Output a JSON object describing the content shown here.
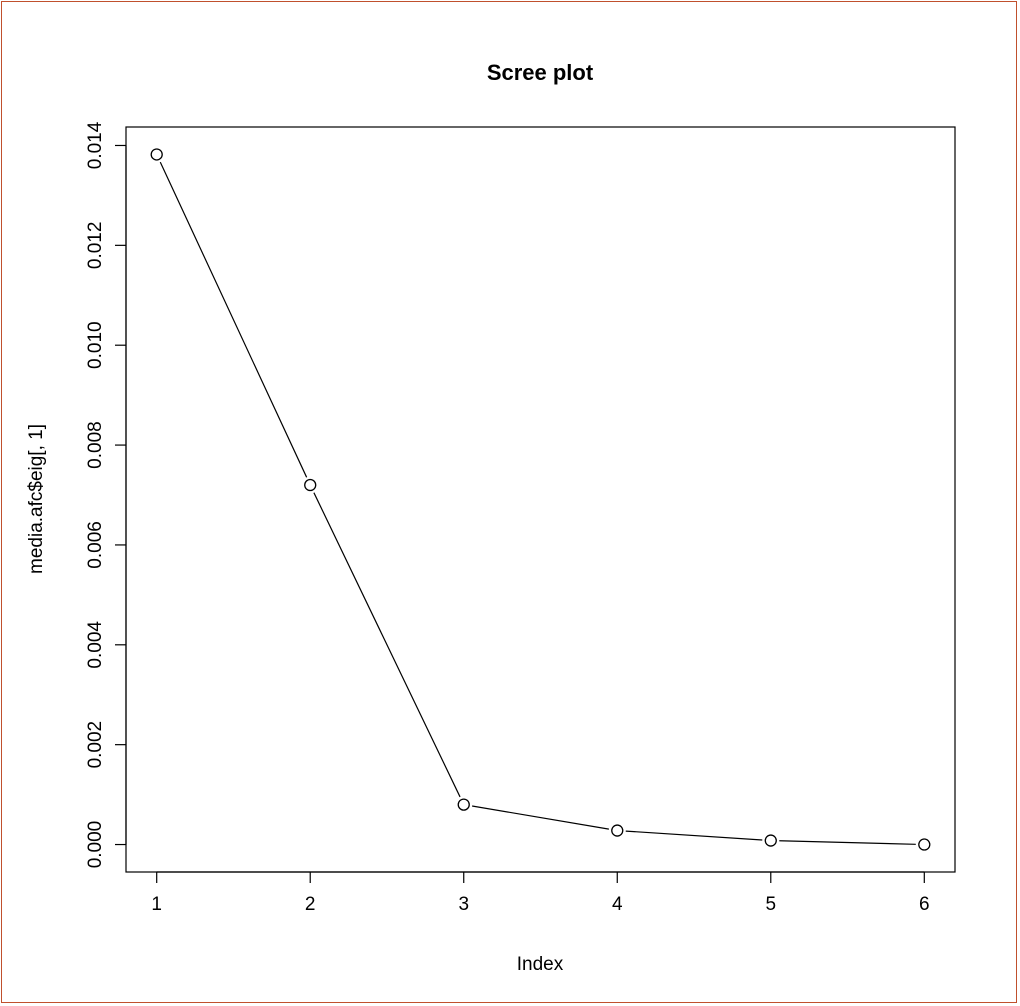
{
  "chart_data": {
    "type": "line",
    "title": "Scree plot",
    "xlabel": "Index",
    "ylabel": "media.afc$eig[, 1]",
    "x": [
      1,
      2,
      3,
      4,
      5,
      6
    ],
    "values": [
      0.01382,
      0.0072,
      0.0008,
      0.00028,
      8e-05,
      0.0
    ],
    "xlim": [
      0.8,
      6.2
    ],
    "ylim": [
      -0.00055,
      0.01437
    ],
    "x_ticks": [
      1,
      2,
      3,
      4,
      5,
      6
    ],
    "x_tick_labels": [
      "1",
      "2",
      "3",
      "4",
      "5",
      "6"
    ],
    "y_ticks": [
      0.0,
      0.002,
      0.004,
      0.006,
      0.008,
      0.01,
      0.012,
      0.014
    ],
    "y_tick_labels": [
      "0.000",
      "0.002",
      "0.004",
      "0.006",
      "0.008",
      "0.010",
      "0.012",
      "0.014"
    ],
    "marker": "open-circle",
    "line_color": "#000000",
    "grid": false,
    "legend": "none"
  },
  "colors": {
    "frame_border": "#c0502d",
    "background": "#ffffff",
    "ink": "#000000"
  }
}
